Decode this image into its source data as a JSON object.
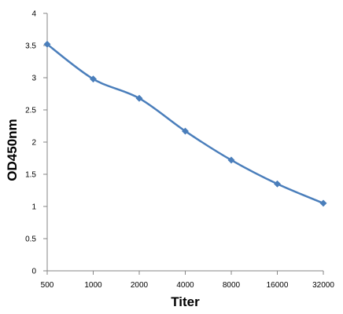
{
  "chart_data": {
    "type": "line",
    "title": "",
    "xlabel": "Titer",
    "ylabel": "OD450nm",
    "categories": [
      "500",
      "1000",
      "2000",
      "4000",
      "8000",
      "16000",
      "32000"
    ],
    "series": [
      {
        "values": [
          3.52,
          2.98,
          2.68,
          2.17,
          1.72,
          1.35,
          1.05
        ],
        "color": "#4a7ebb"
      }
    ],
    "ylim": [
      0,
      4
    ],
    "yticks": [
      "0",
      "0.5",
      "1",
      "1.5",
      "2",
      "2.5",
      "3",
      "3.5",
      "4"
    ],
    "grid": false,
    "legend": "none",
    "marker": "diamond",
    "smooth": true
  }
}
